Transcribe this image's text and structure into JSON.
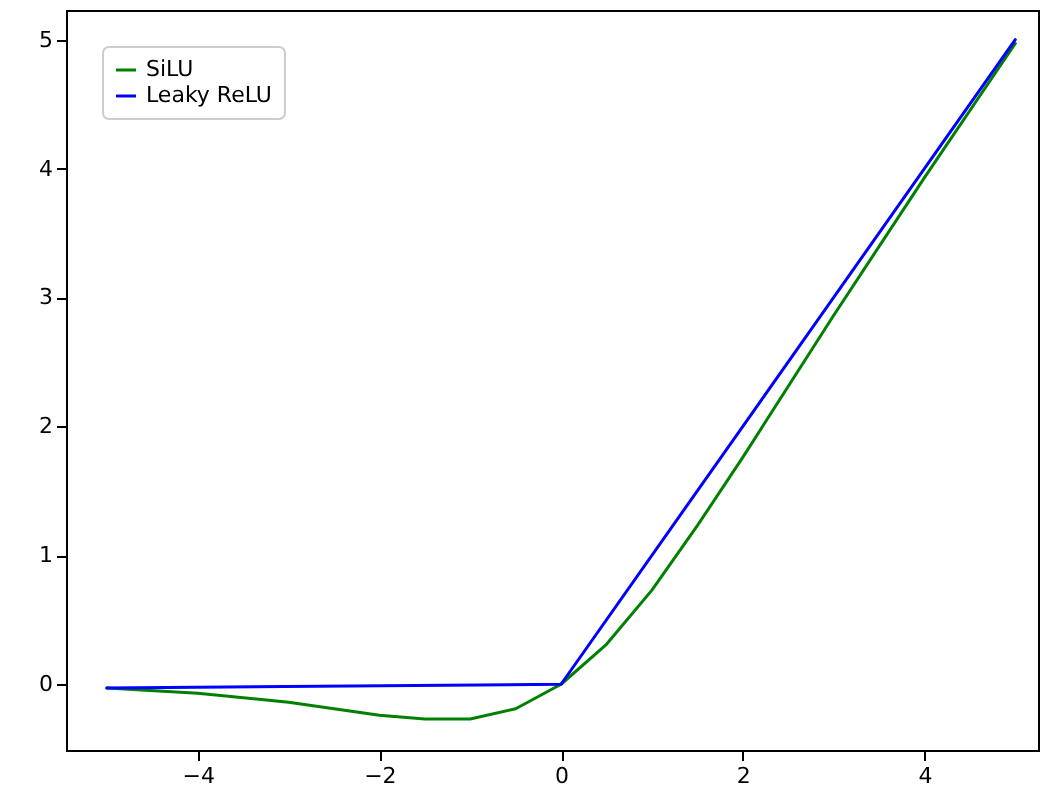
{
  "chart_data": {
    "type": "line",
    "x": [
      -5,
      -4,
      -3,
      -2,
      -1.5,
      -1,
      -0.5,
      0,
      0.5,
      1,
      1.5,
      2,
      3,
      4,
      5
    ],
    "series": [
      {
        "name": "SiLU",
        "color": "#008000",
        "values": [
          -0.03,
          -0.07,
          -0.14,
          -0.24,
          -0.27,
          -0.27,
          -0.19,
          0,
          0.31,
          0.73,
          1.23,
          1.76,
          2.86,
          3.93,
          4.97
        ]
      },
      {
        "name": "Leaky ReLU",
        "color": "#0000ff",
        "x": [
          -5,
          0,
          5
        ],
        "values": [
          -0.03,
          0,
          5
        ]
      }
    ],
    "xlim": [
      -5.45,
      5.25
    ],
    "ylim": [
      -0.51,
      5.23
    ],
    "xticks": [
      -4,
      -2,
      0,
      2,
      4
    ],
    "yticks": [
      0,
      1,
      2,
      3,
      4,
      5
    ],
    "legend": "top left",
    "grid": false,
    "line_style": "solid"
  }
}
